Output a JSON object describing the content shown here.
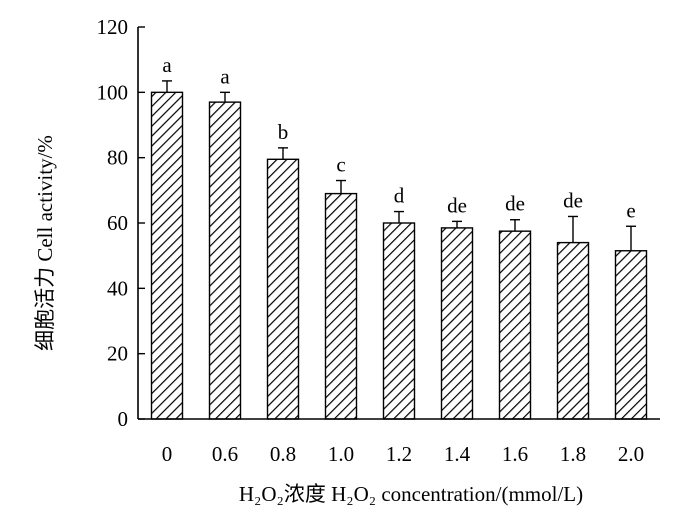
{
  "chart_data": {
    "type": "bar",
    "categories": [
      "0",
      "0.6",
      "0.8",
      "1.0",
      "1.2",
      "1.4",
      "1.6",
      "1.8",
      "2.0"
    ],
    "values": [
      100,
      97,
      79.5,
      69,
      60,
      58.5,
      57.5,
      54,
      51.5
    ],
    "error": [
      3.5,
      3,
      3.5,
      4,
      3.5,
      2,
      3.5,
      8,
      7.5
    ],
    "significance": [
      "a",
      "a",
      "b",
      "c",
      "d",
      "de",
      "de",
      "de",
      "e"
    ],
    "xlabel": "H₂O₂浓度 H₂O₂ concentration/(mmol/L)",
    "ylabel": "细胞活力 Cell activity/%",
    "ylim": [
      0,
      120
    ],
    "yticks": [
      "0",
      "20",
      "40",
      "60",
      "80",
      "100",
      "120"
    ],
    "grid": false,
    "bar_fill": "diagonal-hatch",
    "bar_color": "#000000"
  }
}
